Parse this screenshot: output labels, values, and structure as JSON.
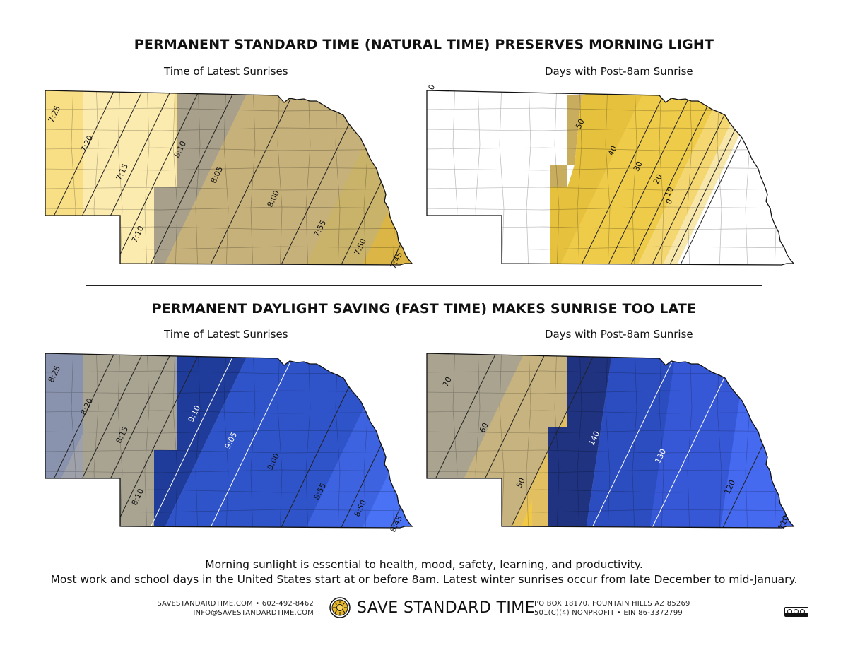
{
  "standard": {
    "title": "PERMANENT STANDARD TIME (NATURAL TIME) PRESERVES MORNING LIGHT",
    "left_map": {
      "label": "Time of Latest Sunrises",
      "bands": [
        "#fcebaf",
        "#f8df86",
        "#a8a08a",
        "#c6b17a",
        "#c9b26a",
        "#d4b553",
        "#dbb545"
      ],
      "contours": [
        "7:25",
        "7:20",
        "7:15",
        "7:10",
        "8:10",
        "8:05",
        "8:00",
        "7:55",
        "7:50",
        "7:45"
      ]
    },
    "right_map": {
      "label": "Days with Post-8am Sunrise",
      "bands": [
        "#ffffff",
        "#c9ad5f",
        "#e6c13e",
        "#efcb4a",
        "#f4d770",
        "#f8e7ab",
        "#ffffff"
      ],
      "contours": [
        "0",
        "50",
        "40",
        "30",
        "20",
        "10",
        "0"
      ]
    }
  },
  "dst": {
    "title": "PERMANENT DAYLIGHT SAVING (FAST TIME) MAKES SUNRISE TOO LATE",
    "left_map": {
      "label": "Time of Latest Sunrises",
      "bands": [
        "#8a93ad",
        "#9fa1aa",
        "#a9a391",
        "#1f3c9a",
        "#2f54c9",
        "#3d63e1",
        "#4a72f5"
      ],
      "contours": [
        "8:25",
        "8:20",
        "8:15",
        "8:10",
        "9:10",
        "9:05",
        "9:00",
        "8:55",
        "8:50",
        "8:45"
      ]
    },
    "right_map": {
      "label": "Days with Post-8am Sunrise",
      "bands": [
        "#a9a38f",
        "#c7b37f",
        "#e2c062",
        "#f2c947",
        "#1f3380",
        "#2c4dc0",
        "#3758d6",
        "#4569ef"
      ],
      "contours": [
        "70",
        "60",
        "50",
        "140",
        "130",
        "120",
        "110"
      ]
    }
  },
  "footer": {
    "line1": "Morning sunlight is essential to health, mood, safety, learning, and productivity.",
    "line2": "Most work and school days in the United States start at or before 8am. Latest winter sunrises occur from late December to mid-January.",
    "contact_left_1": "SAVESTANDARDTIME.COM • 602-492-8462",
    "contact_left_2": "INFO@SAVESTANDARDTIME.COM",
    "brand_name": "SAVE STANDARD TIME",
    "contact_right_1": "PO BOX 18170, FOUNTAIN HILLS AZ 85269",
    "contact_right_2": "501(C)(4) NONPROFIT • EIN 86-3372799"
  }
}
